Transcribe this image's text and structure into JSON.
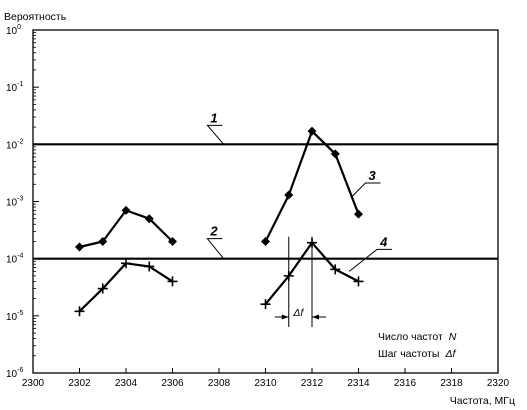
{
  "chart_data": {
    "type": "line",
    "ylabel": "Вероятность",
    "xlabel": "Частота, МГц",
    "xlim": [
      2300,
      2320
    ],
    "ylim": [
      1e-06,
      1
    ],
    "yscale": "log",
    "grid": false,
    "x_ticks": [
      "2300",
      "2302",
      "2304",
      "2306",
      "2308",
      "2310",
      "2312",
      "2314",
      "2316",
      "2318",
      "2320"
    ],
    "y_tick_mantissa": "10",
    "y_tick_exponents": [
      "0",
      "-1",
      "-2",
      "-3",
      "-4",
      "-5",
      "-6"
    ],
    "hlines": [
      {
        "label": "1",
        "y": 0.01
      },
      {
        "label": "2",
        "y": 0.0001
      }
    ],
    "series": [
      {
        "label": "3",
        "marker": "diamond",
        "segments": [
          {
            "x": [
              2302,
              2303,
              2304,
              2305,
              2306
            ],
            "y": [
              0.00016,
              0.0002,
              0.0007,
              0.0005,
              0.0002
            ]
          },
          {
            "x": [
              2310,
              2311,
              2312,
              2313,
              2314
            ],
            "y": [
              0.0002,
              0.0013,
              0.017,
              0.0068,
              0.0006
            ]
          }
        ]
      },
      {
        "label": "4",
        "marker": "plus",
        "segments": [
          {
            "x": [
              2302,
              2303,
              2304,
              2305,
              2306
            ],
            "y": [
              1.2e-05,
              3e-05,
              8.3e-05,
              7.3e-05,
              4e-05
            ]
          },
          {
            "x": [
              2310,
              2311,
              2312,
              2313,
              2314
            ],
            "y": [
              1.6e-05,
              5e-05,
              0.00019,
              6.5e-05,
              4e-05
            ]
          }
        ]
      }
    ],
    "annotations": {
      "delta_f": "Δf",
      "legend_n_text": "Число частот",
      "legend_n_symbol": "N",
      "legend_step_text": "Шаг частоты",
      "legend_step_symbol": "Δf"
    }
  }
}
